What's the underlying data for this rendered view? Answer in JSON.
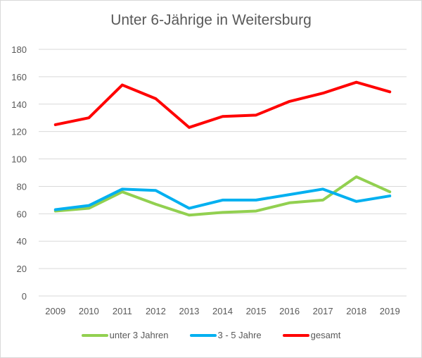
{
  "chart_data": {
    "type": "line",
    "title": "Unter 6-Jährige in Weitersburg",
    "xlabel": "",
    "ylabel": "",
    "categories": [
      "2009",
      "2010",
      "2011",
      "2012",
      "2013",
      "2014",
      "2015",
      "2016",
      "2017",
      "2018",
      "2019"
    ],
    "ylim": [
      0,
      180
    ],
    "yticks": [
      0,
      20,
      40,
      60,
      80,
      100,
      120,
      140,
      160,
      180
    ],
    "grid": true,
    "legend_position": "bottom",
    "series": [
      {
        "name": "unter 3 Jahren",
        "color": "#92d050",
        "values": [
          62,
          64,
          76,
          67,
          59,
          61,
          62,
          68,
          70,
          87,
          76
        ]
      },
      {
        "name": "3 - 5 Jahre",
        "color": "#00b0f0",
        "values": [
          63,
          66,
          78,
          77,
          64,
          70,
          70,
          74,
          78,
          69,
          73
        ]
      },
      {
        "name": "gesamt",
        "color": "#ff0000",
        "values": [
          125,
          130,
          154,
          144,
          123,
          131,
          132,
          142,
          148,
          156,
          149
        ]
      }
    ]
  }
}
